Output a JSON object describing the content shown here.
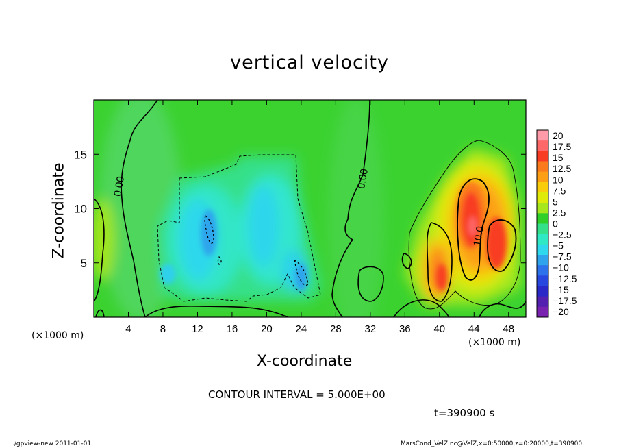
{
  "chart_data": {
    "type": "heatmap",
    "title": "vertical velocity",
    "xlabel": "X-coordinate",
    "ylabel": "Z-coordinate",
    "x_unit_label": "(×1000 m)",
    "xlim": [
      0,
      50
    ],
    "ylim": [
      0,
      20
    ],
    "x_ticks": [
      4,
      8,
      12,
      16,
      20,
      24,
      28,
      32,
      36,
      40,
      44,
      48
    ],
    "y_ticks": [
      5,
      10,
      15
    ],
    "contour_labels": [
      {
        "text": "0.00",
        "x": 3.3,
        "y": 12.0
      },
      {
        "text": "0.00",
        "x": 31.5,
        "y": 12.7
      },
      {
        "text": "10.0",
        "x": 44.9,
        "y": 7.4
      }
    ],
    "colorbar": {
      "levels": [
        "20",
        "17.5",
        "15",
        "12.5",
        "10",
        "7.5",
        "5",
        "2.5",
        "0",
        "−2.5",
        "−5",
        "−7.5",
        "−10",
        "−12.5",
        "−15",
        "−17.5",
        "−20"
      ],
      "colors": [
        "#ff9aa8",
        "#ff6868",
        "#f83c24",
        "#fb7a1c",
        "#fc9f14",
        "#f9cc0c",
        "#dfea08",
        "#a6e81d",
        "#31cf2a",
        "#35e08a",
        "#30e8c4",
        "#2fd8ec",
        "#2fa4ec",
        "#2d72ea",
        "#2747df",
        "#2b28c8",
        "#5420b0",
        "#7a22b0"
      ]
    },
    "contour_interval": "CONTOUR INTERVAL = 5.000E+00",
    "time": "t=390900 s"
  },
  "footer": {
    "left": "./gpview-new 2011-01-01",
    "right": "MarsCond_VelZ.nc@VelZ,x=0:50000,z=0:20000,t=390900"
  }
}
